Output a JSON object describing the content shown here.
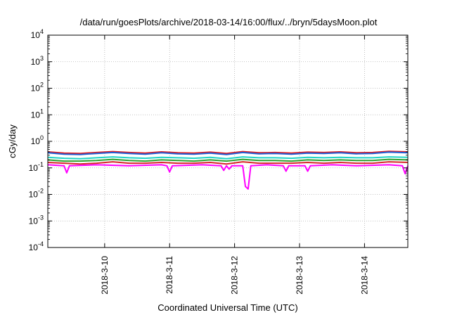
{
  "chart_data": {
    "type": "line",
    "title": "/data/run/goesPlots/archive/2018-03-14/16:00/flux/../bryn/5daysMoon.plot",
    "xlabel": "Coordinated Universal Time (UTC)",
    "ylabel": "cGy/day",
    "yscale": "log",
    "ylim": [
      0.0001,
      10000
    ],
    "xlim": [
      "2018-03-09 03:00",
      "2018-03-14 16:00"
    ],
    "grid": true,
    "legend": "none",
    "y_ticks": [
      {
        "value": 0.0001,
        "base": "10",
        "exp": "-4"
      },
      {
        "value": 0.001,
        "base": "10",
        "exp": "-3"
      },
      {
        "value": 0.01,
        "base": "10",
        "exp": "-2"
      },
      {
        "value": 0.1,
        "base": "10",
        "exp": "-1"
      },
      {
        "value": 1,
        "base": "10",
        "exp": "0"
      },
      {
        "value": 10,
        "base": "10",
        "exp": "1"
      },
      {
        "value": 100,
        "base": "10",
        "exp": "2"
      },
      {
        "value": 1000,
        "base": "10",
        "exp": "3"
      },
      {
        "value": 10000,
        "base": "10",
        "exp": "4"
      }
    ],
    "x_ticks": [
      "2018-3-10",
      "2018-3-11",
      "2018-3-12",
      "2018-3-13",
      "2018-3-14"
    ],
    "x_tick_dates": [
      "2018-03-10 00:00",
      "2018-03-11 00:00",
      "2018-03-12 00:00",
      "2018-03-13 00:00",
      "2018-03-14 00:00"
    ],
    "series": [
      {
        "color": "#e41a1c",
        "x": [
          "2018-03-09 03:00",
          "2018-03-09 09:00",
          "2018-03-09 15:00",
          "2018-03-09 21:00",
          "2018-03-10 03:00",
          "2018-03-10 09:00",
          "2018-03-10 15:00",
          "2018-03-10 21:00",
          "2018-03-11 03:00",
          "2018-03-11 09:00",
          "2018-03-11 15:00",
          "2018-03-11 21:00",
          "2018-03-12 03:00",
          "2018-03-12 09:00",
          "2018-03-12 15:00",
          "2018-03-12 21:00",
          "2018-03-13 03:00",
          "2018-03-13 09:00",
          "2018-03-13 15:00",
          "2018-03-13 21:00",
          "2018-03-14 03:00",
          "2018-03-14 09:00",
          "2018-03-14 16:00"
        ],
        "values": [
          0.4,
          0.36,
          0.35,
          0.38,
          0.41,
          0.38,
          0.36,
          0.4,
          0.37,
          0.36,
          0.39,
          0.35,
          0.41,
          0.37,
          0.38,
          0.36,
          0.39,
          0.38,
          0.4,
          0.37,
          0.38,
          0.42,
          0.4
        ]
      },
      {
        "color": "#1f5fd6",
        "x": [
          "2018-03-09 03:00",
          "2018-03-09 09:00",
          "2018-03-09 15:00",
          "2018-03-09 21:00",
          "2018-03-10 03:00",
          "2018-03-10 09:00",
          "2018-03-10 15:00",
          "2018-03-10 21:00",
          "2018-03-11 03:00",
          "2018-03-11 09:00",
          "2018-03-11 15:00",
          "2018-03-11 21:00",
          "2018-03-12 03:00",
          "2018-03-12 09:00",
          "2018-03-12 15:00",
          "2018-03-12 21:00",
          "2018-03-13 03:00",
          "2018-03-13 09:00",
          "2018-03-13 15:00",
          "2018-03-13 21:00",
          "2018-03-14 03:00",
          "2018-03-14 09:00",
          "2018-03-14 16:00"
        ],
        "values": [
          0.37,
          0.33,
          0.32,
          0.35,
          0.38,
          0.35,
          0.33,
          0.37,
          0.34,
          0.33,
          0.36,
          0.32,
          0.38,
          0.34,
          0.35,
          0.33,
          0.36,
          0.35,
          0.37,
          0.34,
          0.35,
          0.39,
          0.37
        ]
      },
      {
        "color": "#1fd3c6",
        "x": [
          "2018-03-09 03:00",
          "2018-03-09 09:00",
          "2018-03-09 15:00",
          "2018-03-09 21:00",
          "2018-03-10 03:00",
          "2018-03-10 09:00",
          "2018-03-10 15:00",
          "2018-03-10 21:00",
          "2018-03-11 03:00",
          "2018-03-11 09:00",
          "2018-03-11 15:00",
          "2018-03-11 21:00",
          "2018-03-12 03:00",
          "2018-03-12 09:00",
          "2018-03-12 15:00",
          "2018-03-12 21:00",
          "2018-03-13 03:00",
          "2018-03-13 09:00",
          "2018-03-13 15:00",
          "2018-03-13 21:00",
          "2018-03-14 03:00",
          "2018-03-14 09:00",
          "2018-03-14 16:00"
        ],
        "values": [
          0.25,
          0.23,
          0.22,
          0.24,
          0.26,
          0.24,
          0.23,
          0.25,
          0.24,
          0.23,
          0.25,
          0.22,
          0.26,
          0.24,
          0.24,
          0.23,
          0.25,
          0.24,
          0.25,
          0.24,
          0.24,
          0.26,
          0.25
        ]
      },
      {
        "color": "#2ca02c",
        "x": [
          "2018-03-09 03:00",
          "2018-03-09 09:00",
          "2018-03-09 15:00",
          "2018-03-09 21:00",
          "2018-03-10 03:00",
          "2018-03-10 09:00",
          "2018-03-10 15:00",
          "2018-03-10 21:00",
          "2018-03-11 03:00",
          "2018-03-11 09:00",
          "2018-03-11 15:00",
          "2018-03-11 21:00",
          "2018-03-12 03:00",
          "2018-03-12 09:00",
          "2018-03-12 15:00",
          "2018-03-12 21:00",
          "2018-03-13 03:00",
          "2018-03-13 09:00",
          "2018-03-13 15:00",
          "2018-03-13 21:00",
          "2018-03-14 03:00",
          "2018-03-14 09:00",
          "2018-03-14 16:00"
        ],
        "values": [
          0.2,
          0.18,
          0.18,
          0.19,
          0.21,
          0.19,
          0.18,
          0.2,
          0.19,
          0.18,
          0.2,
          0.18,
          0.21,
          0.19,
          0.19,
          0.18,
          0.2,
          0.19,
          0.2,
          0.19,
          0.19,
          0.21,
          0.2
        ]
      },
      {
        "color": "#d62728",
        "x": [
          "2018-03-09 03:00",
          "2018-03-09 09:00",
          "2018-03-09 15:00",
          "2018-03-09 21:00",
          "2018-03-10 03:00",
          "2018-03-10 09:00",
          "2018-03-10 15:00",
          "2018-03-10 21:00",
          "2018-03-11 03:00",
          "2018-03-11 09:00",
          "2018-03-11 15:00",
          "2018-03-11 21:00",
          "2018-03-12 03:00",
          "2018-03-12 09:00",
          "2018-03-12 15:00",
          "2018-03-12 21:00",
          "2018-03-13 03:00",
          "2018-03-13 09:00",
          "2018-03-13 15:00",
          "2018-03-13 21:00",
          "2018-03-14 03:00",
          "2018-03-14 09:00",
          "2018-03-14 16:00"
        ],
        "values": [
          0.16,
          0.15,
          0.14,
          0.15,
          0.17,
          0.15,
          0.15,
          0.16,
          0.15,
          0.15,
          0.16,
          0.14,
          0.17,
          0.15,
          0.15,
          0.15,
          0.16,
          0.15,
          0.16,
          0.15,
          0.15,
          0.17,
          0.16
        ]
      },
      {
        "color": "#ff00ff",
        "x": [
          "2018-03-09 03:00",
          "2018-03-09 09:00",
          "2018-03-09 10:00",
          "2018-03-09 11:00",
          "2018-03-09 21:00",
          "2018-03-10 09:00",
          "2018-03-10 21:00",
          "2018-03-10 23:00",
          "2018-03-11 00:00",
          "2018-03-11 01:00",
          "2018-03-11 12:00",
          "2018-03-11 19:00",
          "2018-03-11 20:00",
          "2018-03-11 21:00",
          "2018-03-11 22:00",
          "2018-03-11 23:00",
          "2018-03-12 03:00",
          "2018-03-12 04:00",
          "2018-03-12 05:00",
          "2018-03-12 06:00",
          "2018-03-12 12:00",
          "2018-03-12 18:00",
          "2018-03-12 19:00",
          "2018-03-12 20:00",
          "2018-03-13 02:00",
          "2018-03-13 03:00",
          "2018-03-13 04:00",
          "2018-03-13 12:00",
          "2018-03-13 21:00",
          "2018-03-14 09:00",
          "2018-03-14 14:00",
          "2018-03-14 15:00",
          "2018-03-14 16:00"
        ],
        "values": [
          0.13,
          0.12,
          0.065,
          0.12,
          0.13,
          0.12,
          0.13,
          0.12,
          0.07,
          0.12,
          0.13,
          0.12,
          0.08,
          0.12,
          0.09,
          0.12,
          0.12,
          0.02,
          0.016,
          0.12,
          0.13,
          0.12,
          0.075,
          0.12,
          0.12,
          0.075,
          0.12,
          0.13,
          0.12,
          0.13,
          0.12,
          0.06,
          0.12
        ]
      }
    ]
  }
}
